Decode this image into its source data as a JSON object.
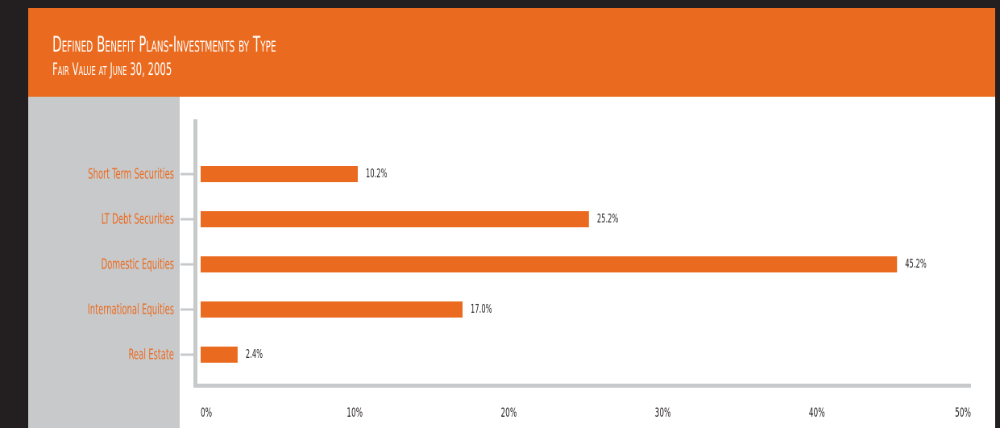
{
  "header": {
    "title": "Defined Benefit Plans-Investments by Type",
    "subtitle": "Fair Value at June 30, 2005"
  },
  "colors": {
    "accent": "#ea6b1f",
    "frame": "#231f20",
    "axis": "#c8c9cb",
    "label": "#ea6b1f",
    "value_text": "#231f20"
  },
  "chart_data": {
    "type": "bar",
    "orientation": "horizontal",
    "title": "Defined Benefit Plans-Investments by Type",
    "subtitle": "Fair Value at June 30, 2005",
    "categories": [
      "Short Term Securities",
      "LT Debt Securities",
      "Domestic Equities",
      "International Equities",
      "Real Estate"
    ],
    "values": [
      10.2,
      25.2,
      45.2,
      17.0,
      2.4
    ],
    "value_labels": [
      "10.2%",
      "25.2%",
      "45.2%",
      "17.0%",
      "2.4%"
    ],
    "xlim": [
      0,
      50
    ],
    "x_ticks": [
      0,
      10,
      20,
      30,
      40,
      50
    ],
    "x_tick_labels": [
      "0%",
      "10%",
      "20%",
      "30%",
      "40%",
      "50%"
    ],
    "grid": false,
    "legend": "none"
  }
}
